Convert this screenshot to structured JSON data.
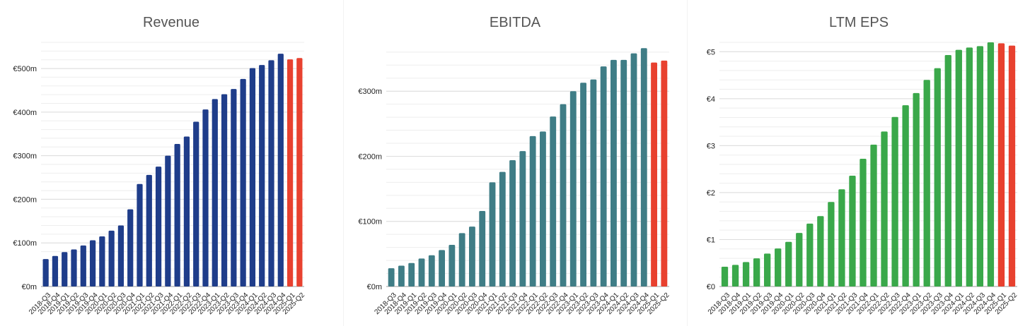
{
  "chart_data": [
    {
      "type": "bar",
      "title": "Revenue",
      "xlabel": "",
      "ylabel": "",
      "ylim": [
        0,
        560
      ],
      "yticks": [
        0,
        100,
        200,
        300,
        400,
        500
      ],
      "ytick_labels": [
        "€0m",
        "€100m",
        "€200m",
        "€300m",
        "€400m",
        "€500m"
      ],
      "minor_grid_step": 20,
      "grid": true,
      "legend": "none",
      "categories": [
        "2018-Q3",
        "2018-Q4",
        "2019-Q1",
        "2019-Q2",
        "2019-Q3",
        "2019-Q4",
        "2020-Q1",
        "2020-Q2",
        "2020-Q3",
        "2020-Q4",
        "2021-Q1",
        "2021-Q2",
        "2021-Q3",
        "2021-Q4",
        "2022-Q1",
        "2022-Q2",
        "2022-Q3",
        "2022-Q4",
        "2023-Q1",
        "2023-Q2",
        "2023-Q3",
        "2023-Q4",
        "2024-Q1",
        "2024-Q2",
        "2024-Q3",
        "2024-Q4",
        "2025-Q1",
        "2025-Q2"
      ],
      "values": [
        63,
        70,
        79,
        85,
        94,
        106,
        115,
        128,
        140,
        177,
        235,
        256,
        275,
        300,
        327,
        344,
        378,
        406,
        430,
        441,
        453,
        476,
        501,
        508,
        519,
        534,
        521,
        524
      ],
      "colors": {
        "actual": "#1f3d8a",
        "forecast": "#e8412f"
      },
      "forecast_categories": [
        "2025-Q1",
        "2025-Q2"
      ]
    },
    {
      "type": "bar",
      "title": "EBITDA",
      "xlabel": "",
      "ylabel": "",
      "ylim": [
        0,
        375
      ],
      "yticks": [
        0,
        100,
        200,
        300
      ],
      "ytick_labels": [
        "€0m",
        "€100m",
        "€200m",
        "€300m"
      ],
      "minor_grid_step": 20,
      "grid": true,
      "legend": "none",
      "categories": [
        "2018-Q3",
        "2018-Q4",
        "2019-Q1",
        "2019-Q2",
        "2019-Q3",
        "2019-Q4",
        "2020-Q1",
        "2020-Q2",
        "2020-Q3",
        "2020-Q4",
        "2021-Q1",
        "2021-Q2",
        "2021-Q3",
        "2021-Q4",
        "2022-Q1",
        "2022-Q2",
        "2022-Q3",
        "2022-Q4",
        "2023-Q1",
        "2023-Q2",
        "2023-Q3",
        "2023-Q4",
        "2024-Q1",
        "2024-Q2",
        "2024-Q3",
        "2024-Q4",
        "2025-Q1",
        "2025-Q2"
      ],
      "values": [
        28,
        32,
        36,
        43,
        48,
        56,
        64,
        82,
        92,
        116,
        160,
        176,
        194,
        208,
        231,
        238,
        261,
        280,
        300,
        313,
        318,
        338,
        348,
        348,
        358,
        366,
        344,
        347
      ],
      "colors": {
        "actual": "#3f7d86",
        "forecast": "#e8412f"
      },
      "forecast_categories": [
        "2025-Q1",
        "2025-Q2"
      ]
    },
    {
      "type": "bar",
      "title": "LTM EPS",
      "xlabel": "",
      "ylabel": "",
      "ylim": [
        0,
        5.2
      ],
      "yticks": [
        0,
        1,
        2,
        3,
        4,
        5
      ],
      "ytick_labels": [
        "€0",
        "€1",
        "€2",
        "€3",
        "€4",
        "€5"
      ],
      "minor_grid_step": 0.2,
      "grid": true,
      "legend": "none",
      "categories": [
        "2018-Q3",
        "2018-Q4",
        "2019-Q1",
        "2019-Q2",
        "2019-Q3",
        "2019-Q4",
        "2020-Q1",
        "2020-Q2",
        "2020-Q3",
        "2020-Q4",
        "2021-Q1",
        "2021-Q2",
        "2021-Q3",
        "2021-Q4",
        "2022-Q1",
        "2022-Q2",
        "2022-Q3",
        "2022-Q4",
        "2023-Q1",
        "2023-Q2",
        "2023-Q3",
        "2023-Q4",
        "2024-Q1",
        "2024-Q2",
        "2024-Q3",
        "2024-Q4",
        "2025-Q1",
        "2025-Q2"
      ],
      "values": [
        0.42,
        0.46,
        0.52,
        0.6,
        0.7,
        0.81,
        0.95,
        1.14,
        1.34,
        1.5,
        1.8,
        2.07,
        2.36,
        2.72,
        3.02,
        3.3,
        3.61,
        3.86,
        4.12,
        4.4,
        4.65,
        4.93,
        5.04,
        5.09,
        5.12,
        5.2,
        5.18,
        5.13
      ],
      "colors": {
        "actual": "#3aa84a",
        "forecast": "#e8412f"
      },
      "forecast_categories": [
        "2025-Q1",
        "2025-Q2"
      ]
    }
  ]
}
